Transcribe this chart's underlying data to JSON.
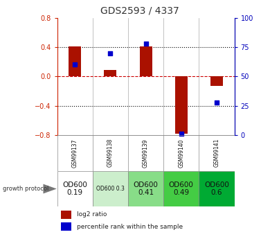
{
  "title": "GDS2593 / 4337",
  "samples": [
    "GSM99137",
    "GSM99138",
    "GSM99139",
    "GSM99140",
    "GSM99141"
  ],
  "log2_ratio": [
    0.41,
    0.09,
    0.41,
    -0.78,
    -0.13
  ],
  "percentile_rank": [
    60,
    70,
    78,
    1,
    28
  ],
  "ylim_left": [
    -0.8,
    0.8
  ],
  "ylim_right": [
    0,
    100
  ],
  "bar_color": "#aa1100",
  "dot_color": "#0000cc",
  "protocol_labels": [
    "OD600\n0.19",
    "OD600 0.3",
    "OD600\n0.41",
    "OD600\n0.49",
    "OD600\n0.6"
  ],
  "protocol_colors": [
    "#ffffff",
    "#cceecc",
    "#88dd88",
    "#44cc44",
    "#00aa33"
  ],
  "bg_color": "#ffffff",
  "zero_line_color": "#cc0000",
  "dotted_color": "#000000",
  "title_color": "#333333",
  "gsm_bg": "#cccccc",
  "left_tick_color": "#cc2200",
  "right_tick_color": "#0000bb"
}
